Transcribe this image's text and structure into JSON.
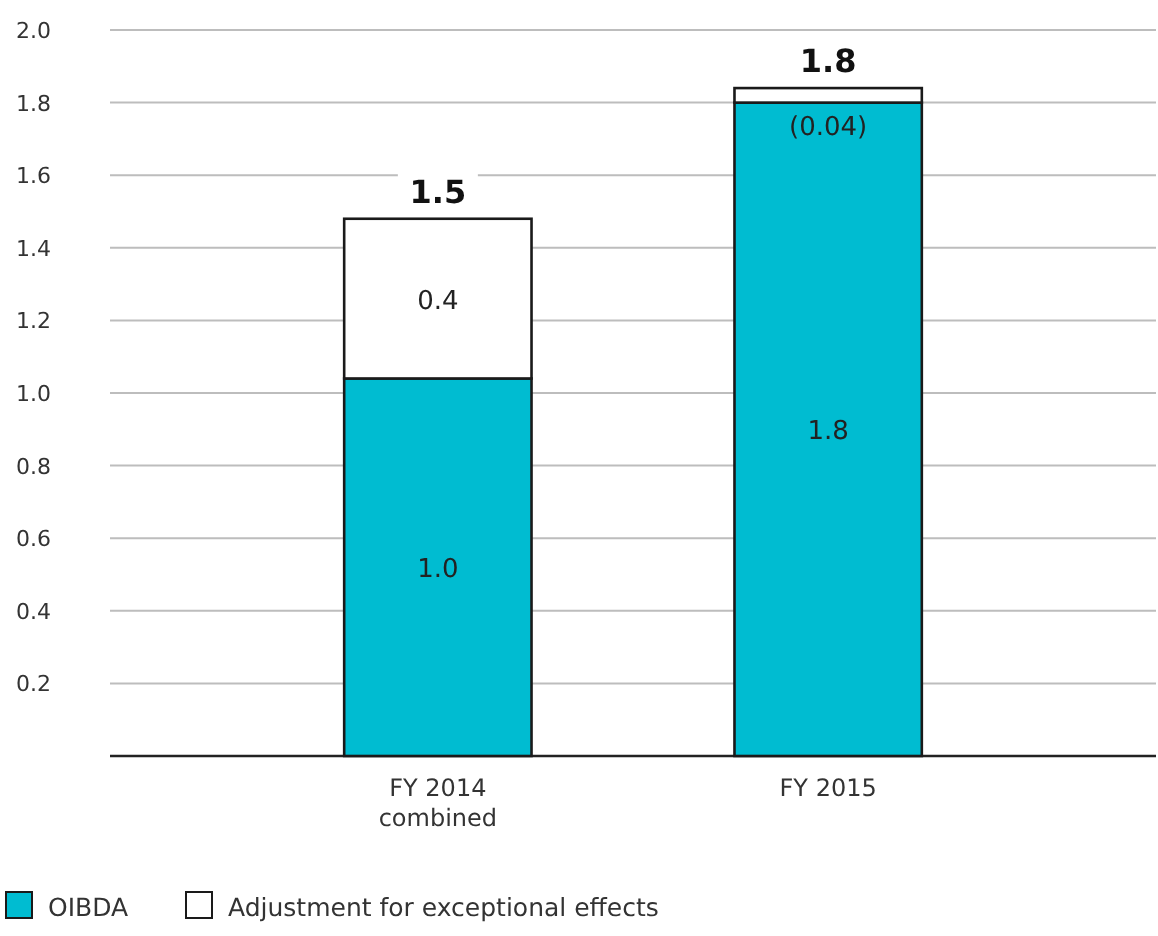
{
  "chart_data": {
    "type": "bar",
    "stacked": true,
    "categories": [
      "FY 2014\ncombined",
      "FY 2015"
    ],
    "series": [
      {
        "name": "OIBDA",
        "color": "#00bcd1",
        "values": [
          1.04,
          1.8
        ],
        "value_labels": [
          "1.0",
          "1.8"
        ]
      },
      {
        "name": "Adjustment for exceptional effects",
        "color": "#ffffff",
        "values": [
          0.44,
          0.04
        ],
        "value_labels": [
          "0.4",
          "(0.04)"
        ]
      }
    ],
    "totals": [
      "1.5",
      "1.8"
    ],
    "ylim": [
      0,
      2
    ],
    "yticks": [
      0.2,
      0.4,
      0.6,
      0.8,
      {
        "value": 1,
        "label": "1.0"
      },
      1.2,
      1.4,
      1.6,
      1.8,
      {
        "value": 2,
        "label": "2.0"
      }
    ],
    "grid": "y",
    "legend": "bottom left"
  }
}
